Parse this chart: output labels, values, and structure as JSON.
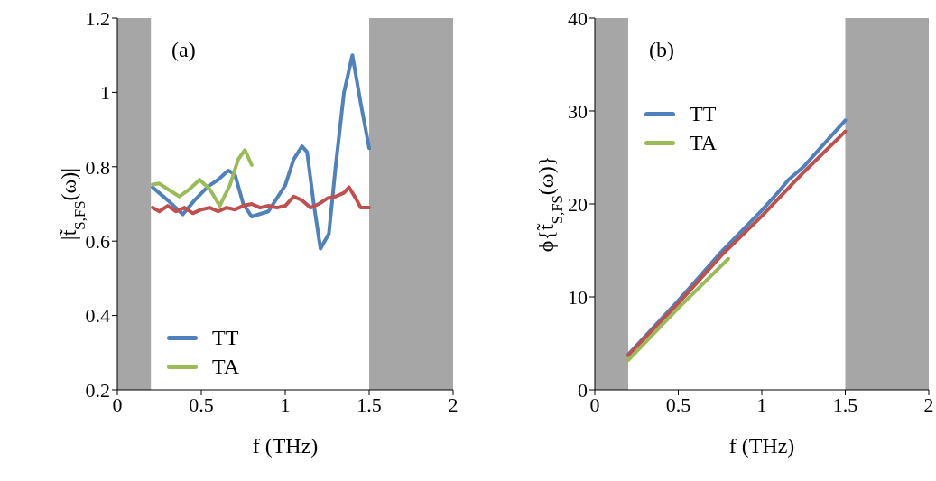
{
  "chart_data": [
    {
      "type": "line",
      "annotations": [
        "(a)"
      ],
      "xlabel": "f (THz)",
      "ylabel": "|t̃$_{S,FS}$(ω)|",
      "xlim": [
        0,
        2
      ],
      "xticks": [
        0,
        0.5,
        1,
        1.5,
        2
      ],
      "ylim": [
        0.2,
        1.2
      ],
      "yticks": [
        0.2,
        0.4,
        0.6,
        0.8,
        1,
        1.2
      ],
      "grid": false,
      "legend": "bottom left",
      "line_style": "solid",
      "marker": "none",
      "bands": [
        {
          "axis": "x",
          "from": 0,
          "to": 0.2,
          "color": "#a6a6a6"
        },
        {
          "axis": "x",
          "from": 1.5,
          "to": 2,
          "color": "#a6a6a6"
        }
      ],
      "series": [
        {
          "name": "TT",
          "color": "#4f81bd",
          "x": [
            0.21,
            0.3,
            0.39,
            0.46,
            0.54,
            0.6,
            0.66,
            0.7,
            0.75,
            0.8,
            0.9,
            1.0,
            1.05,
            1.1,
            1.13,
            1.17,
            1.21,
            1.26,
            1.3,
            1.35,
            1.4,
            1.45,
            1.5
          ],
          "values": [
            0.745,
            0.71,
            0.672,
            0.71,
            0.747,
            0.765,
            0.79,
            0.78,
            0.7,
            0.666,
            0.68,
            0.75,
            0.82,
            0.855,
            0.84,
            0.7,
            0.58,
            0.62,
            0.8,
            1.0,
            1.1,
            0.97,
            0.85
          ]
        },
        {
          "color": "#c0504d",
          "x": [
            0.21,
            0.25,
            0.3,
            0.35,
            0.4,
            0.45,
            0.5,
            0.55,
            0.6,
            0.65,
            0.7,
            0.75,
            0.8,
            0.85,
            0.9,
            0.95,
            1.0,
            1.05,
            1.1,
            1.15,
            1.2,
            1.25,
            1.3,
            1.35,
            1.38,
            1.42,
            1.45,
            1.5
          ],
          "values": [
            0.69,
            0.68,
            0.695,
            0.68,
            0.69,
            0.675,
            0.685,
            0.69,
            0.68,
            0.69,
            0.685,
            0.695,
            0.7,
            0.69,
            0.695,
            0.69,
            0.695,
            0.72,
            0.71,
            0.69,
            0.7,
            0.715,
            0.72,
            0.73,
            0.745,
            0.715,
            0.69,
            0.69
          ]
        },
        {
          "name": "TA",
          "color": "#9bbb59",
          "x": [
            0.21,
            0.25,
            0.3,
            0.37,
            0.43,
            0.49,
            0.55,
            0.61,
            0.67,
            0.72,
            0.76,
            0.8
          ],
          "values": [
            0.752,
            0.755,
            0.74,
            0.72,
            0.74,
            0.765,
            0.74,
            0.695,
            0.75,
            0.82,
            0.845,
            0.805
          ]
        }
      ]
    },
    {
      "type": "line",
      "annotations": [
        "(b)"
      ],
      "xlabel": "f (THz)",
      "ylabel": "ϕ{t̃$_{S,FS}$(ω)}",
      "xlim": [
        0,
        2
      ],
      "xticks": [
        0,
        0.5,
        1,
        1.5,
        2
      ],
      "ylim": [
        0,
        40
      ],
      "yticks": [
        0,
        10,
        20,
        30,
        40
      ],
      "grid": false,
      "legend": "top left",
      "line_style": "solid",
      "marker": "none",
      "bands": [
        {
          "axis": "x",
          "from": 0,
          "to": 0.2,
          "color": "#a6a6a6"
        },
        {
          "axis": "x",
          "from": 1.5,
          "to": 2,
          "color": "#a6a6a6"
        }
      ],
      "series": [
        {
          "name": "TT",
          "color": "#4f81bd",
          "x": [
            0.2,
            0.5,
            0.76,
            1.0,
            1.1,
            1.16,
            1.25,
            1.35,
            1.5
          ],
          "values": [
            3.8,
            9.6,
            14.9,
            19.3,
            21.3,
            22.6,
            24.0,
            26.0,
            29.0
          ]
        },
        {
          "color": "#c0504d",
          "x": [
            0.2,
            0.5,
            0.76,
            1.0,
            1.25,
            1.5
          ],
          "values": [
            3.7,
            9.3,
            14.5,
            18.7,
            23.4,
            27.8
          ]
        },
        {
          "name": "TA",
          "color": "#9bbb59",
          "x": [
            0.2,
            0.5,
            0.8
          ],
          "values": [
            3.2,
            8.8,
            14.1
          ]
        }
      ]
    }
  ]
}
